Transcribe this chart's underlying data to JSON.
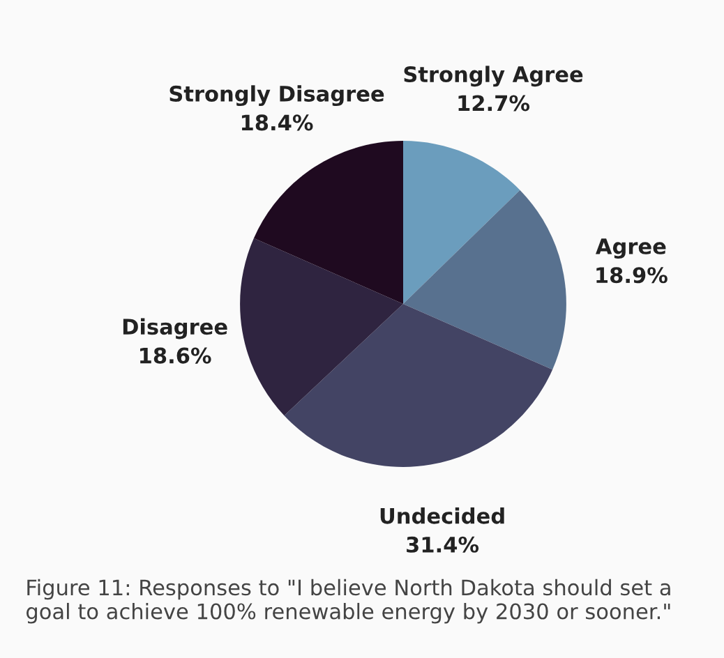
{
  "chart_data": {
    "type": "pie",
    "categories": [
      "Strongly Agree",
      "Agree",
      "Undecided",
      "Disagree",
      "Strongly Disagree"
    ],
    "values": [
      12.7,
      18.9,
      31.4,
      18.6,
      18.4
    ],
    "value_labels": [
      "12.7%",
      "18.9%",
      "31.4%",
      "18.6%",
      "18.4%"
    ],
    "colors": [
      "#6b9dbd",
      "#58718f",
      "#434464",
      "#2f2440",
      "#1f0a20"
    ],
    "legend": false,
    "annotations": [
      "Figure 11: Responses to \"I believe North Dakota should set a goal to achieve 100% renewable energy by 2030 or sooner.\""
    ]
  }
}
